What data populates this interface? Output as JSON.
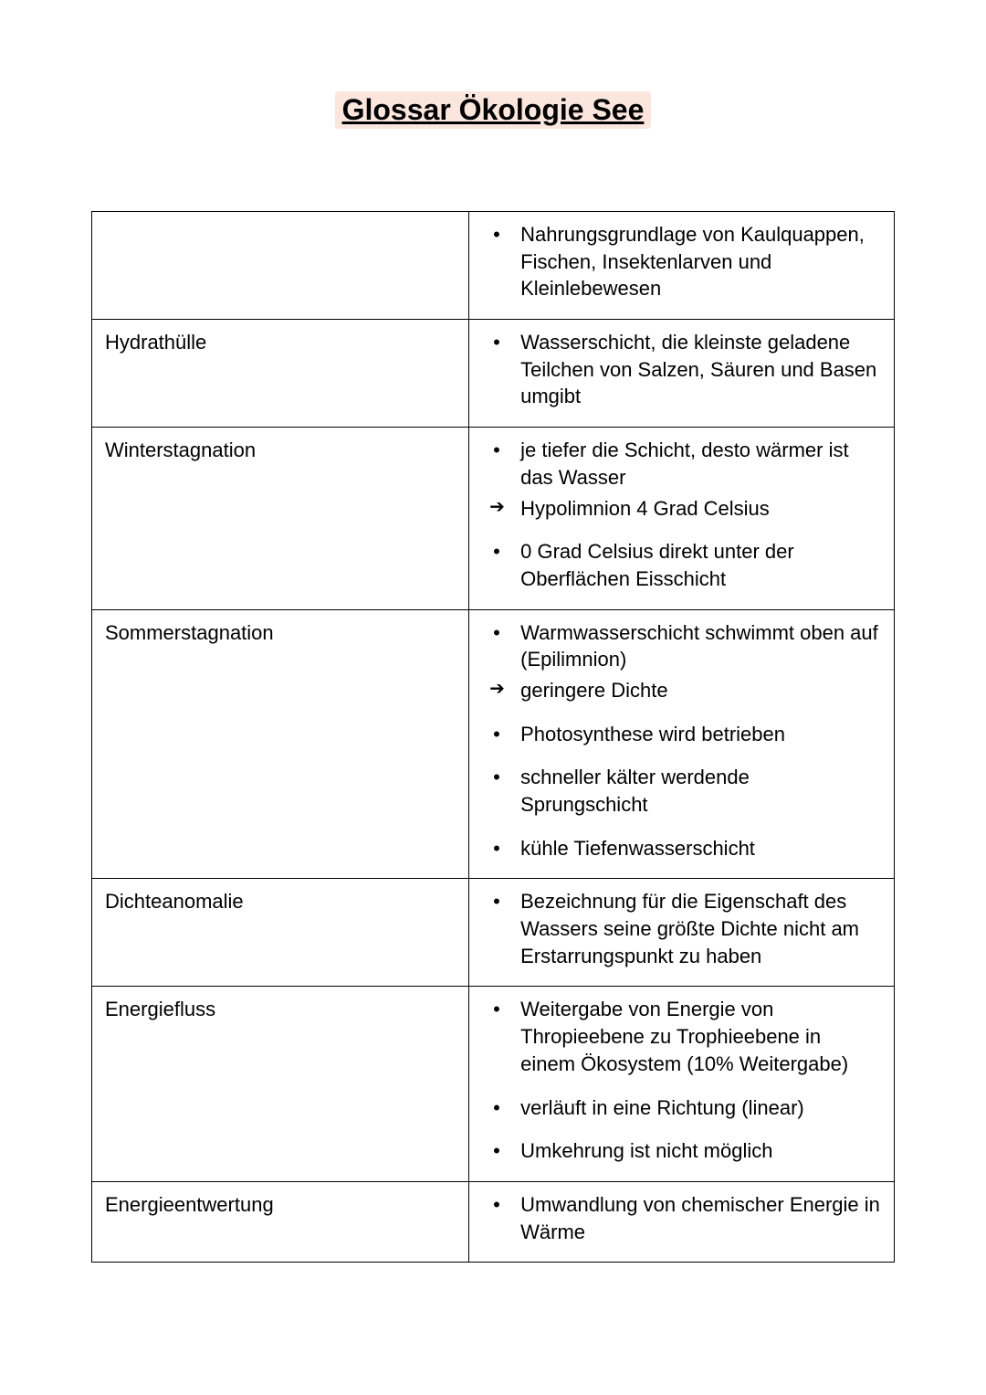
{
  "document": {
    "title": "Glossar Ökologie See",
    "title_bg": "#fbe6de",
    "text_color": "#000000",
    "background_color": "#ffffff",
    "font_family": "Arial",
    "title_fontsize": 32,
    "body_fontsize": 22,
    "border_color": "#000000"
  },
  "rows": [
    {
      "term": "",
      "items": [
        {
          "marker": "bullet",
          "text": "Nahrungsgrundlage von Kaulquappen, Fischen, Insektenlarven und Kleinlebewesen"
        }
      ]
    },
    {
      "term": "Hydrathülle",
      "items": [
        {
          "marker": "bullet",
          "text": "Wasserschicht, die kleinste geladene Teilchen von Salzen, Säuren und Basen umgibt"
        }
      ]
    },
    {
      "term": "Winterstagnation",
      "items": [
        {
          "marker": "bullet",
          "text": "je tiefer die Schicht, desto wärmer ist das Wasser"
        },
        {
          "marker": "arrow",
          "text": "Hypolimnion 4 Grad Celsius"
        },
        {
          "marker": "bullet",
          "text": "0 Grad Celsius direkt unter der Oberflächen Eisschicht",
          "gap": true
        }
      ]
    },
    {
      "term": "Sommerstagnation",
      "items": [
        {
          "marker": "bullet",
          "text": "Warmwasserschicht schwimmt oben auf (Epilimnion)"
        },
        {
          "marker": "arrow",
          "text": "geringere Dichte"
        },
        {
          "marker": "bullet",
          "text": "Photosynthese wird betrieben",
          "gap": true
        },
        {
          "marker": "bullet",
          "text": "schneller kälter werdende Sprungschicht",
          "gap": true
        },
        {
          "marker": "bullet",
          "text": "kühle Tiefenwasserschicht",
          "gap": true
        }
      ]
    },
    {
      "term": "Dichteanomalie",
      "items": [
        {
          "marker": "bullet",
          "text": "Bezeichnung für die Eigenschaft des Wassers seine größte Dichte nicht am Erstarrungspunkt zu haben"
        }
      ]
    },
    {
      "term": "Energiefluss",
      "items": [
        {
          "marker": "bullet",
          "text": "Weitergabe von Energie von Thropieebene zu Trophieebene in einem Ökosystem (10% Weitergabe)"
        },
        {
          "marker": "bullet",
          "text": "verläuft in eine Richtung (linear)",
          "gap": true
        },
        {
          "marker": "bullet",
          "text": "Umkehrung ist nicht möglich",
          "gap": true
        }
      ]
    },
    {
      "term": "Energieentwertung",
      "items": [
        {
          "marker": "bullet",
          "text": "Umwandlung von chemischer Energie in Wärme"
        }
      ]
    }
  ]
}
